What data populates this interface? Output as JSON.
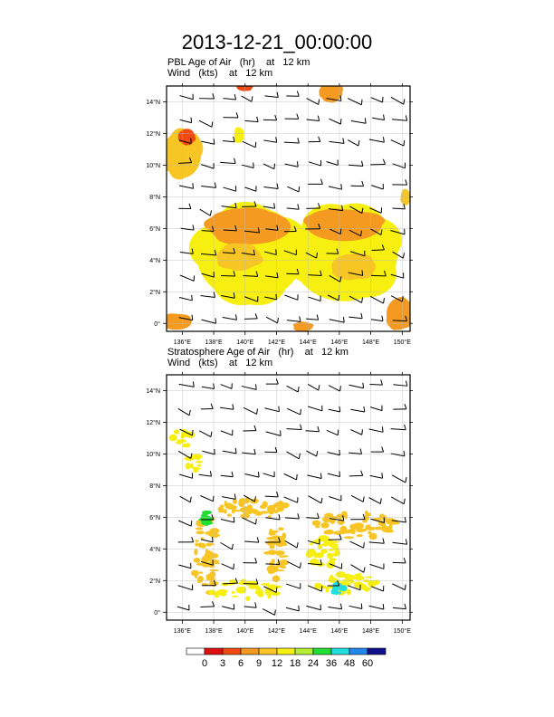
{
  "title": "2013-12-21_00:00:00",
  "panels": [
    {
      "field_line": [
        "PBL Age of Air",
        "(hr)",
        "at",
        "12 km"
      ],
      "wind_line": [
        "Wind",
        "(kts)",
        "at",
        "12 km"
      ]
    },
    {
      "field_line": [
        "Stratosphere Age of Air",
        "(hr)",
        "at",
        "12 km"
      ],
      "wind_line": [
        "Wind",
        "(kts)",
        "at",
        "12 km"
      ]
    }
  ],
  "colors": {
    "c0": "#ffffff",
    "c1": "#dd1111",
    "c2": "#f04a10",
    "c3": "#f59a20",
    "c4": "#f7c524",
    "c5": "#f6ef10",
    "c6": "#b5ec34",
    "c7": "#22dd33",
    "c8": "#22dddd",
    "c9": "#2288ee",
    "c10": "#101088",
    "wind": "#000000",
    "grid": "#bbbbbb"
  },
  "chart_data": [
    {
      "type": "heatmap",
      "title": "PBL Age of Air (hr) at 12 km",
      "overlay": "Wind (kts) at 12 km, wind barbs",
      "x_axis": {
        "range": [
          135,
          150.5
        ],
        "ticks": [
          136,
          138,
          140,
          142,
          144,
          146,
          148,
          150
        ],
        "tick_labels": [
          "136°E",
          "138°E",
          "140°E",
          "142°E",
          "144°E",
          "146°E",
          "148°E",
          "150°E"
        ]
      },
      "y_axis": {
        "range": [
          -0.5,
          15
        ],
        "ticks": [
          0,
          2,
          4,
          6,
          8,
          10,
          12,
          14
        ],
        "tick_labels": [
          "0°",
          "2°N",
          "4°N",
          "6°N",
          "8°N",
          "10°N",
          "12°N",
          "14°N"
        ]
      },
      "colorbar_levels": [
        0,
        3,
        6,
        9,
        12,
        18,
        24,
        36,
        48,
        60
      ],
      "regions": [
        {
          "name": "western-cluster",
          "lon": 140.3,
          "lat": 4.4,
          "rlon": 3.4,
          "rlat": 3.0,
          "value": 12
        },
        {
          "name": "western-cluster-core",
          "lon": 140.3,
          "lat": 6.1,
          "rlon": 2.6,
          "rlat": 1.1,
          "value": 6
        },
        {
          "name": "western-cluster-core-2",
          "lon": 139.6,
          "lat": 4.2,
          "rlon": 1.4,
          "rlat": 0.8,
          "value": 9
        },
        {
          "name": "eastern-cluster",
          "lon": 146.3,
          "lat": 4.4,
          "rlon": 3.4,
          "rlat": 3.0,
          "value": 12
        },
        {
          "name": "eastern-cluster-core",
          "lon": 146.3,
          "lat": 6.2,
          "rlon": 2.4,
          "rlat": 1.0,
          "value": 6
        },
        {
          "name": "eastern-cluster-core-2",
          "lon": 146.9,
          "lat": 3.6,
          "rlon": 1.4,
          "rlat": 0.8,
          "value": 9
        },
        {
          "name": "west-edge-patch",
          "lon": 136.0,
          "lat": 10.7,
          "rlon": 1.2,
          "rlat": 1.5,
          "value": 9
        },
        {
          "name": "nw-red-patch",
          "lon": 136.3,
          "lat": 11.8,
          "rlon": 0.5,
          "rlat": 0.5,
          "value": 3
        },
        {
          "name": "n-yellow-patch",
          "lon": 139.6,
          "lat": 11.9,
          "rlon": 0.3,
          "rlat": 0.5,
          "value": 12
        },
        {
          "name": "n-top-patch",
          "lon": 140.0,
          "lat": 15.0,
          "rlon": 0.5,
          "rlat": 0.3,
          "value": 3
        },
        {
          "name": "ne-top-patch",
          "lon": 145.5,
          "lat": 14.6,
          "rlon": 0.7,
          "rlat": 0.6,
          "value": 6
        },
        {
          "name": "sw-corner-patch",
          "lon": 135.6,
          "lat": 0.1,
          "rlon": 1.0,
          "rlat": 0.5,
          "value": 6
        },
        {
          "name": "s-center-patch",
          "lon": 143.7,
          "lat": -0.2,
          "rlon": 0.6,
          "rlat": 0.3,
          "value": 6
        },
        {
          "name": "se-corner-patch",
          "lon": 149.8,
          "lat": 0.6,
          "rlon": 0.8,
          "rlat": 1.0,
          "value": 6
        },
        {
          "name": "ne-edge-patch",
          "lon": 150.2,
          "lat": 8.0,
          "rlon": 0.3,
          "rlat": 0.5,
          "value": 9
        }
      ]
    },
    {
      "type": "heatmap",
      "title": "Stratosphere Age of Air (hr) at 12 km",
      "overlay": "Wind (kts) at 12 km, wind barbs",
      "x_axis": {
        "range": [
          135,
          150.5
        ],
        "ticks": [
          136,
          138,
          140,
          142,
          144,
          146,
          148,
          150
        ],
        "tick_labels": [
          "136°E",
          "138°E",
          "140°E",
          "142°E",
          "144°E",
          "146°E",
          "148°E",
          "150°E"
        ]
      },
      "y_axis": {
        "range": [
          -0.5,
          15
        ],
        "ticks": [
          0,
          2,
          4,
          6,
          8,
          10,
          12,
          14
        ],
        "tick_labels": [
          "0°",
          "2°N",
          "4°N",
          "6°N",
          "8°N",
          "10°N",
          "12°N",
          "14°N"
        ]
      },
      "colorbar_levels": [
        0,
        3,
        6,
        9,
        12,
        18,
        24,
        36,
        48,
        60
      ],
      "regions": [
        {
          "name": "western-ring-n",
          "lon": 140.3,
          "lat": 6.5,
          "rlon": 2.5,
          "rlat": 0.6,
          "value": 9
        },
        {
          "name": "western-ring-w",
          "lon": 137.5,
          "lat": 3.6,
          "rlon": 0.8,
          "rlat": 2.6,
          "value": 9
        },
        {
          "name": "western-ring-s",
          "lon": 140.0,
          "lat": 1.4,
          "rlon": 2.2,
          "rlat": 0.6,
          "value": 12
        },
        {
          "name": "western-ring-e",
          "lon": 142.0,
          "lat": 3.8,
          "rlon": 0.6,
          "rlat": 1.8,
          "value": 9
        },
        {
          "name": "western-green",
          "lon": 137.5,
          "lat": 5.9,
          "rlon": 0.3,
          "rlat": 0.5,
          "value": 24
        },
        {
          "name": "eastern-ring-n",
          "lon": 147.0,
          "lat": 5.5,
          "rlon": 2.6,
          "rlat": 0.8,
          "value": 9
        },
        {
          "name": "eastern-ring-w",
          "lon": 145.0,
          "lat": 3.8,
          "rlon": 1.0,
          "rlat": 1.0,
          "value": 12
        },
        {
          "name": "eastern-ring-s",
          "lon": 146.5,
          "lat": 1.8,
          "rlon": 2.0,
          "rlat": 0.6,
          "value": 12
        },
        {
          "name": "eastern-green",
          "lon": 145.9,
          "lat": 1.5,
          "rlon": 0.4,
          "rlat": 0.3,
          "value": 36
        },
        {
          "name": "nw-small",
          "lon": 136.0,
          "lat": 11.0,
          "rlon": 0.6,
          "rlat": 0.6,
          "value": 12
        },
        {
          "name": "w-small",
          "lon": 136.8,
          "lat": 9.3,
          "rlon": 0.5,
          "rlat": 0.7,
          "value": 12
        }
      ]
    }
  ],
  "colorbar": {
    "labels": [
      "0",
      "3",
      "6",
      "9",
      "12",
      "18",
      "24",
      "36",
      "48",
      "60"
    ],
    "color_keys": [
      "c0",
      "c1",
      "c2",
      "c3",
      "c4",
      "c5",
      "c6",
      "c7",
      "c8",
      "c9",
      "c10"
    ]
  }
}
